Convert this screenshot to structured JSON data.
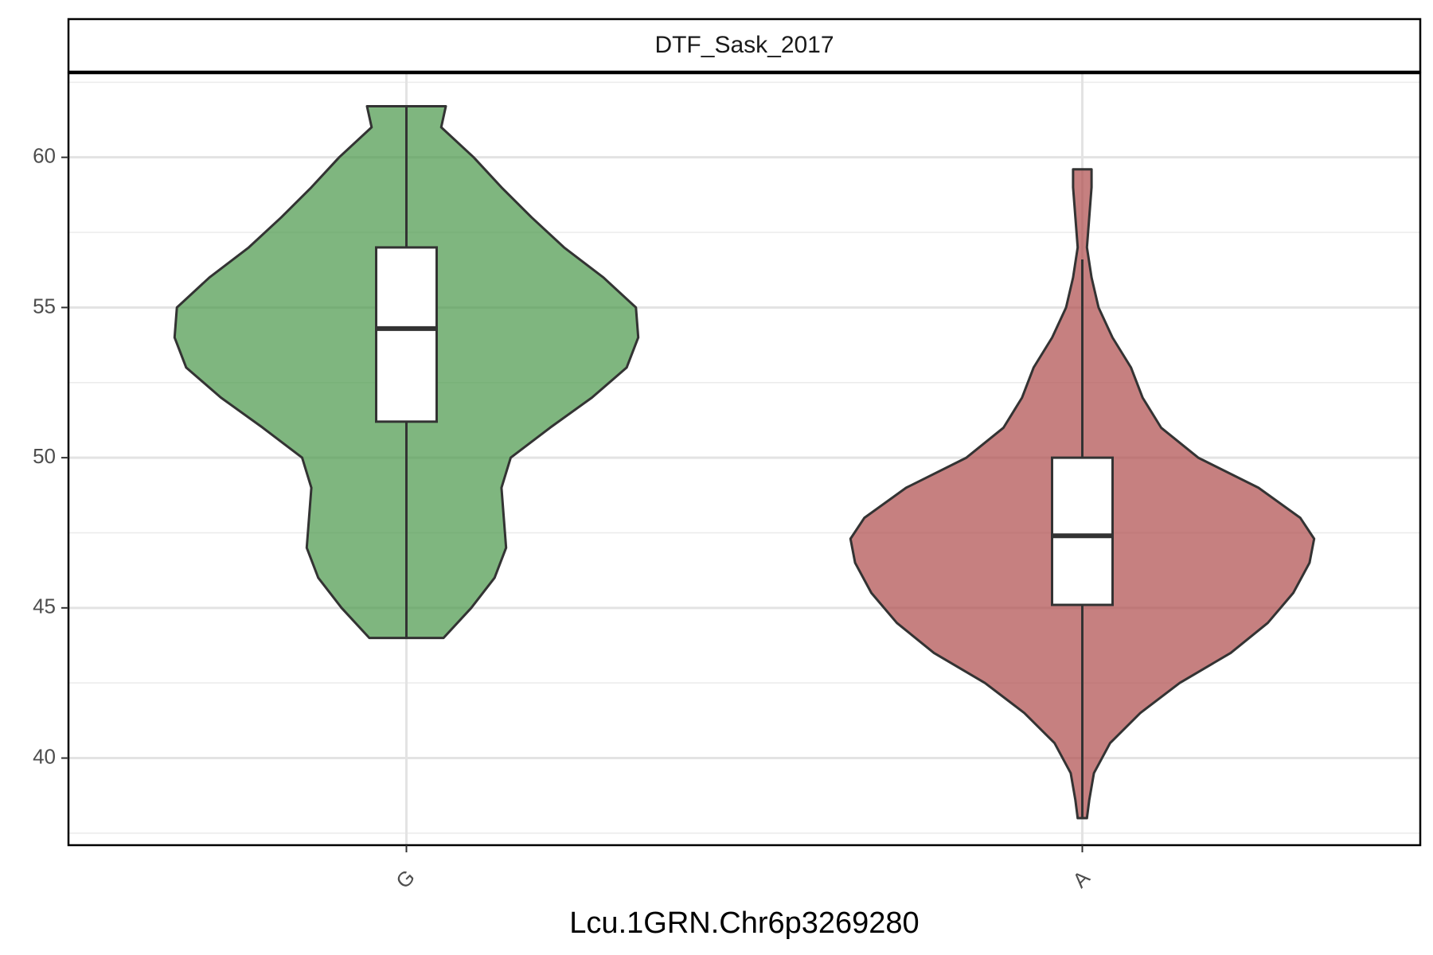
{
  "chart_data": {
    "type": "violin",
    "facet_label": "DTF_Sask_2017",
    "xlabel": "Lcu.1GRN.Chr6p3269280",
    "ylabel": "",
    "ylim": [
      37.1,
      62.8
    ],
    "y_ticks": [
      40,
      45,
      50,
      55,
      60
    ],
    "y_minor_ticks": [
      37.5,
      42.5,
      47.5,
      52.5,
      57.5,
      62.5
    ],
    "categories": [
      "G",
      "A"
    ],
    "grid": true,
    "legend": "none",
    "series": [
      {
        "category": "G",
        "color": "#4d9a4d",
        "min": 44,
        "q1": 51.2,
        "median": 54.3,
        "q3": 57.0,
        "max": 61.7,
        "whisker_low": 44,
        "whisker_high": 61.7,
        "density": [
          [
            44,
            0.16
          ],
          [
            45,
            0.28
          ],
          [
            46,
            0.38
          ],
          [
            47,
            0.43
          ],
          [
            48,
            0.42
          ],
          [
            49,
            0.41
          ],
          [
            50,
            0.45
          ],
          [
            51,
            0.62
          ],
          [
            52,
            0.8
          ],
          [
            53,
            0.95
          ],
          [
            54,
            1.0
          ],
          [
            55,
            0.99
          ],
          [
            56,
            0.85
          ],
          [
            57,
            0.68
          ],
          [
            58,
            0.54
          ],
          [
            59,
            0.41
          ],
          [
            60,
            0.29
          ],
          [
            61,
            0.15
          ],
          [
            61.7,
            0.17
          ]
        ]
      },
      {
        "category": "A",
        "color": "#b04f4f",
        "min": 38,
        "q1": 45.1,
        "median": 47.4,
        "q3": 50.0,
        "max": 59.6,
        "whisker_low": 38,
        "whisker_high": 56.6,
        "density": [
          [
            38,
            0.02
          ],
          [
            38.6,
            0.03
          ],
          [
            39.5,
            0.05
          ],
          [
            40.5,
            0.12
          ],
          [
            41.5,
            0.25
          ],
          [
            42.5,
            0.42
          ],
          [
            43.5,
            0.64
          ],
          [
            44.5,
            0.8
          ],
          [
            45.5,
            0.91
          ],
          [
            46.5,
            0.98
          ],
          [
            47.3,
            1.0
          ],
          [
            48,
            0.94
          ],
          [
            49,
            0.76
          ],
          [
            50,
            0.5
          ],
          [
            51,
            0.34
          ],
          [
            52,
            0.26
          ],
          [
            53,
            0.21
          ],
          [
            54,
            0.13
          ],
          [
            55,
            0.07
          ],
          [
            56,
            0.04
          ],
          [
            57,
            0.02
          ],
          [
            58,
            0.03
          ],
          [
            59,
            0.04
          ],
          [
            59.6,
            0.04
          ]
        ]
      }
    ]
  }
}
